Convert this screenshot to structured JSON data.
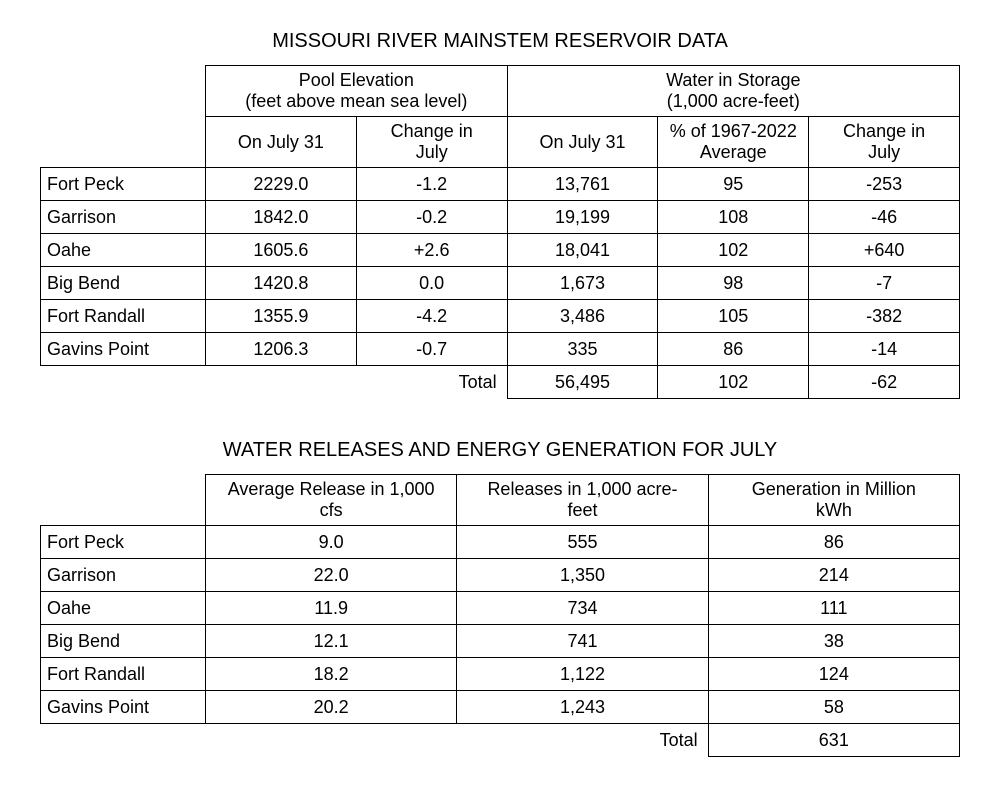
{
  "section1": {
    "title": "MISSOURI RIVER MAINSTEM RESERVOIR DATA",
    "group_headers": {
      "pool": {
        "line1": "Pool Elevation",
        "line2": "(feet above mean sea level)"
      },
      "storage": {
        "line1": "Water in Storage",
        "line2": "(1,000 acre-feet)"
      }
    },
    "sub_headers": {
      "pool_on": "On July 31",
      "pool_change": {
        "l1": "Change in",
        "l2": "July"
      },
      "storage_on": "On July 31",
      "storage_pct": {
        "l1": "% of 1967-2022",
        "l2": "Average"
      },
      "storage_change": {
        "l1": "Change in",
        "l2": "July"
      }
    },
    "rows": [
      {
        "name": "Fort Peck",
        "pool_on": "2229.0",
        "pool_ch": "-1.2",
        "stor_on": "13,761",
        "stor_pct": "95",
        "stor_ch": "-253"
      },
      {
        "name": "Garrison",
        "pool_on": "1842.0",
        "pool_ch": "-0.2",
        "stor_on": "19,199",
        "stor_pct": "108",
        "stor_ch": "-46"
      },
      {
        "name": "Oahe",
        "pool_on": "1605.6",
        "pool_ch": "+2.6",
        "stor_on": "18,041",
        "stor_pct": "102",
        "stor_ch": "+640"
      },
      {
        "name": "Big Bend",
        "pool_on": "1420.8",
        "pool_ch": "0.0",
        "stor_on": "1,673",
        "stor_pct": "98",
        "stor_ch": "-7"
      },
      {
        "name": "Fort Randall",
        "pool_on": "1355.9",
        "pool_ch": "-4.2",
        "stor_on": "3,486",
        "stor_pct": "105",
        "stor_ch": "-382"
      },
      {
        "name": "Gavins Point",
        "pool_on": "1206.3",
        "pool_ch": "-0.7",
        "stor_on": "335",
        "stor_pct": "86",
        "stor_ch": "-14"
      }
    ],
    "total": {
      "label": "Total",
      "stor_on": "56,495",
      "stor_pct": "102",
      "stor_ch": "-62"
    }
  },
  "section2": {
    "title": "WATER RELEASES AND ENERGY GENERATION FOR JULY",
    "headers": {
      "avg_release": {
        "l1": "Average Release in 1,000",
        "l2": "cfs"
      },
      "releases": {
        "l1": "Releases in 1,000 acre-",
        "l2": "feet"
      },
      "generation": {
        "l1": "Generation in Million",
        "l2": "kWh"
      }
    },
    "rows": [
      {
        "name": "Fort Peck",
        "avg": "9.0",
        "rel": "555",
        "gen": "86"
      },
      {
        "name": "Garrison",
        "avg": "22.0",
        "rel": "1,350",
        "gen": "214"
      },
      {
        "name": "Oahe",
        "avg": "11.9",
        "rel": "734",
        "gen": "111"
      },
      {
        "name": "Big Bend",
        "avg": "12.1",
        "rel": "741",
        "gen": "38"
      },
      {
        "name": "Fort Randall",
        "avg": "18.2",
        "rel": "1,122",
        "gen": "124"
      },
      {
        "name": "Gavins Point",
        "avg": "20.2",
        "rel": "1,243",
        "gen": "58"
      }
    ],
    "total": {
      "label": "Total",
      "gen": "631"
    }
  }
}
